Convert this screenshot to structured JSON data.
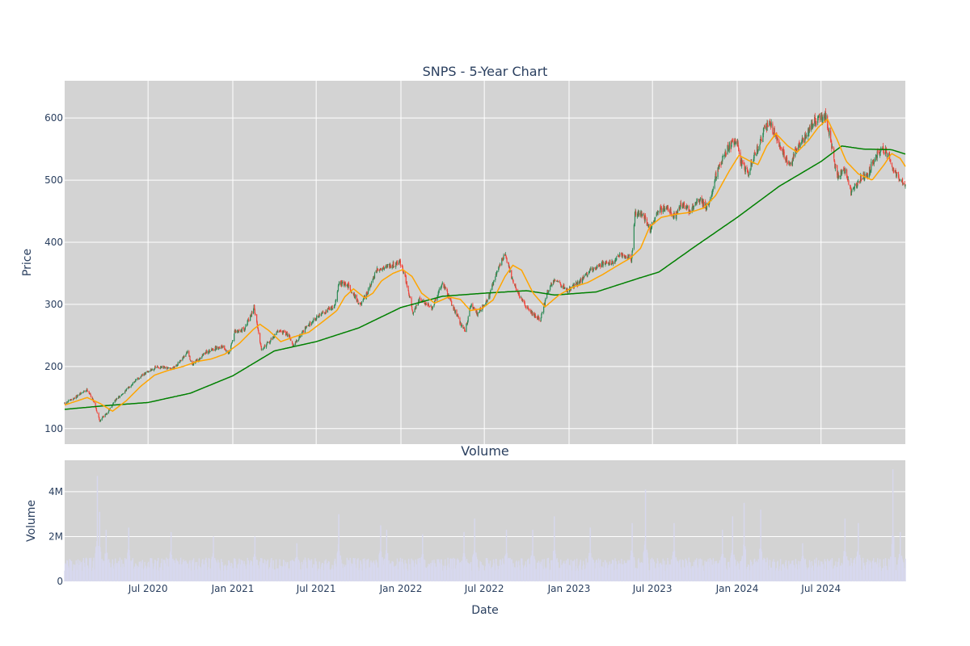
{
  "chart_data": [
    {
      "type": "candlestick",
      "title": "SNPS - 5-Year Chart",
      "ylabel": "Price",
      "xlabel": "",
      "ylim": [
        75,
        660
      ],
      "xlim": [
        "2020-01-02",
        "2024-12-31"
      ],
      "y_ticks": [
        100,
        200,
        300,
        400,
        500,
        600
      ],
      "grid": true,
      "background": "#d3d3d3",
      "colors": {
        "up": "#2e8b57",
        "down": "#f0433a",
        "ma_short": "#ffa500",
        "ma_long": "#008000"
      },
      "price_keypoints": [
        [
          "2020-01-02",
          140
        ],
        [
          "2020-01-20",
          148
        ],
        [
          "2020-02-20",
          163
        ],
        [
          "2020-03-06",
          143
        ],
        [
          "2020-03-18",
          112
        ],
        [
          "2020-03-23",
          118
        ],
        [
          "2020-04-01",
          123
        ],
        [
          "2020-04-20",
          145
        ],
        [
          "2020-05-10",
          158
        ],
        [
          "2020-06-01",
          176
        ],
        [
          "2020-07-01",
          192
        ],
        [
          "2020-07-20",
          199
        ],
        [
          "2020-08-20",
          196
        ],
        [
          "2020-09-10",
          208
        ],
        [
          "2020-09-25",
          224
        ],
        [
          "2020-10-05",
          202
        ],
        [
          "2020-11-01",
          222
        ],
        [
          "2020-11-20",
          228
        ],
        [
          "2020-12-10",
          233
        ],
        [
          "2020-12-23",
          220
        ],
        [
          "2021-01-05",
          255
        ],
        [
          "2021-01-26",
          261
        ],
        [
          "2021-02-08",
          280
        ],
        [
          "2021-02-16",
          296
        ],
        [
          "2021-03-04",
          229
        ],
        [
          "2021-03-20",
          238
        ],
        [
          "2021-04-10",
          258
        ],
        [
          "2021-05-03",
          251
        ],
        [
          "2021-05-12",
          232
        ],
        [
          "2021-06-01",
          256
        ],
        [
          "2021-06-25",
          275
        ],
        [
          "2021-07-20",
          289
        ],
        [
          "2021-08-10",
          297
        ],
        [
          "2021-08-20",
          335
        ],
        [
          "2021-09-10",
          329
        ],
        [
          "2021-10-05",
          298
        ],
        [
          "2021-10-20",
          318
        ],
        [
          "2021-11-10",
          355
        ],
        [
          "2021-12-01",
          362
        ],
        [
          "2021-12-20",
          365
        ],
        [
          "2021-12-29",
          370
        ],
        [
          "2022-01-10",
          345
        ],
        [
          "2022-01-27",
          287
        ],
        [
          "2022-02-10",
          307
        ],
        [
          "2022-03-01",
          300
        ],
        [
          "2022-03-10",
          292
        ],
        [
          "2022-04-01",
          335
        ],
        [
          "2022-04-15",
          312
        ],
        [
          "2022-05-10",
          270
        ],
        [
          "2022-05-20",
          258
        ],
        [
          "2022-06-03",
          300
        ],
        [
          "2022-06-16",
          285
        ],
        [
          "2022-07-10",
          310
        ],
        [
          "2022-08-01",
          360
        ],
        [
          "2022-08-15",
          382
        ],
        [
          "2022-09-01",
          337
        ],
        [
          "2022-09-20",
          306
        ],
        [
          "2022-10-14",
          285
        ],
        [
          "2022-10-31",
          275
        ],
        [
          "2022-11-15",
          320
        ],
        [
          "2022-12-01",
          342
        ],
        [
          "2022-12-28",
          322
        ],
        [
          "2023-01-20",
          334
        ],
        [
          "2023-02-10",
          350
        ],
        [
          "2023-02-28",
          360
        ],
        [
          "2023-03-20",
          368
        ],
        [
          "2023-04-10",
          368
        ],
        [
          "2023-04-20",
          378
        ],
        [
          "2023-05-05",
          378
        ],
        [
          "2023-05-17",
          372
        ],
        [
          "2023-05-24",
          445
        ],
        [
          "2023-06-10",
          445
        ],
        [
          "2023-06-26",
          420
        ],
        [
          "2023-07-15",
          453
        ],
        [
          "2023-08-01",
          455
        ],
        [
          "2023-08-20",
          440
        ],
        [
          "2023-09-01",
          462
        ],
        [
          "2023-09-20",
          450
        ],
        [
          "2023-10-10",
          468
        ],
        [
          "2023-10-30",
          455
        ],
        [
          "2023-11-15",
          508
        ],
        [
          "2023-12-01",
          536
        ],
        [
          "2023-12-15",
          555
        ],
        [
          "2023-12-31",
          565
        ],
        [
          "2024-01-08",
          530
        ],
        [
          "2024-01-25",
          510
        ],
        [
          "2024-02-05",
          535
        ],
        [
          "2024-02-20",
          560
        ],
        [
          "2024-02-28",
          583
        ],
        [
          "2024-03-12",
          590
        ],
        [
          "2024-03-25",
          572
        ],
        [
          "2024-04-10",
          545
        ],
        [
          "2024-04-25",
          520
        ],
        [
          "2024-05-10",
          555
        ],
        [
          "2024-05-25",
          565
        ],
        [
          "2024-06-10",
          590
        ],
        [
          "2024-06-25",
          600
        ],
        [
          "2024-07-10",
          605
        ],
        [
          "2024-07-24",
          555
        ],
        [
          "2024-08-05",
          505
        ],
        [
          "2024-08-20",
          520
        ],
        [
          "2024-09-05",
          478
        ],
        [
          "2024-09-25",
          505
        ],
        [
          "2024-10-10",
          510
        ],
        [
          "2024-10-25",
          535
        ],
        [
          "2024-11-10",
          550
        ],
        [
          "2024-11-25",
          540
        ],
        [
          "2024-12-05",
          515
        ],
        [
          "2024-12-20",
          500
        ],
        [
          "2024-12-31",
          488
        ]
      ],
      "ma_short_keypoints": [
        [
          "2020-01-02",
          138
        ],
        [
          "2020-02-20",
          150
        ],
        [
          "2020-03-20",
          140
        ],
        [
          "2020-04-15",
          128
        ],
        [
          "2020-05-15",
          145
        ],
        [
          "2020-06-15",
          168
        ],
        [
          "2020-07-15",
          186
        ],
        [
          "2020-08-15",
          194
        ],
        [
          "2020-09-15",
          200
        ],
        [
          "2020-10-15",
          208
        ],
        [
          "2020-11-15",
          212
        ],
        [
          "2020-12-15",
          220
        ],
        [
          "2021-01-15",
          237
        ],
        [
          "2021-02-15",
          260
        ],
        [
          "2021-03-01",
          268
        ],
        [
          "2021-03-20",
          258
        ],
        [
          "2021-04-15",
          240
        ],
        [
          "2021-05-15",
          248
        ],
        [
          "2021-06-15",
          255
        ],
        [
          "2021-07-15",
          272
        ],
        [
          "2021-08-15",
          290
        ],
        [
          "2021-09-01",
          312
        ],
        [
          "2021-09-20",
          325
        ],
        [
          "2021-10-15",
          310
        ],
        [
          "2021-11-01",
          318
        ],
        [
          "2021-11-20",
          338
        ],
        [
          "2021-12-15",
          350
        ],
        [
          "2022-01-05",
          356
        ],
        [
          "2022-01-25",
          345
        ],
        [
          "2022-02-15",
          318
        ],
        [
          "2022-03-15",
          302
        ],
        [
          "2022-04-15",
          312
        ],
        [
          "2022-05-10",
          308
        ],
        [
          "2022-06-01",
          290
        ],
        [
          "2022-06-25",
          293
        ],
        [
          "2022-07-20",
          307
        ],
        [
          "2022-08-15",
          345
        ],
        [
          "2022-09-01",
          363
        ],
        [
          "2022-09-20",
          355
        ],
        [
          "2022-10-15",
          318
        ],
        [
          "2022-11-10",
          296
        ],
        [
          "2022-12-10",
          315
        ],
        [
          "2023-01-10",
          328
        ],
        [
          "2023-02-10",
          335
        ],
        [
          "2023-03-15",
          348
        ],
        [
          "2023-04-15",
          362
        ],
        [
          "2023-05-15",
          375
        ],
        [
          "2023-06-05",
          390
        ],
        [
          "2023-06-25",
          425
        ],
        [
          "2023-07-20",
          440
        ],
        [
          "2023-08-20",
          445
        ],
        [
          "2023-09-20",
          448
        ],
        [
          "2023-10-20",
          455
        ],
        [
          "2023-11-15",
          475
        ],
        [
          "2023-12-15",
          515
        ],
        [
          "2024-01-05",
          540
        ],
        [
          "2024-01-25",
          532
        ],
        [
          "2024-02-15",
          525
        ],
        [
          "2024-03-05",
          555
        ],
        [
          "2024-03-25",
          575
        ],
        [
          "2024-04-20",
          555
        ],
        [
          "2024-05-10",
          545
        ],
        [
          "2024-06-05",
          565
        ],
        [
          "2024-06-25",
          585
        ],
        [
          "2024-07-15",
          598
        ],
        [
          "2024-08-05",
          565
        ],
        [
          "2024-08-25",
          530
        ],
        [
          "2024-09-20",
          510
        ],
        [
          "2024-10-20",
          500
        ],
        [
          "2024-11-15",
          525
        ],
        [
          "2024-12-01",
          543
        ],
        [
          "2024-12-20",
          535
        ],
        [
          "2024-12-31",
          522
        ]
      ],
      "ma_long_keypoints": [
        [
          "2020-01-02",
          131
        ],
        [
          "2020-04-01",
          137
        ],
        [
          "2020-07-01",
          142
        ],
        [
          "2020-10-01",
          157
        ],
        [
          "2021-01-01",
          185
        ],
        [
          "2021-04-01",
          225
        ],
        [
          "2021-07-01",
          240
        ],
        [
          "2021-10-01",
          262
        ],
        [
          "2022-01-01",
          295
        ],
        [
          "2022-04-01",
          313
        ],
        [
          "2022-07-01",
          318
        ],
        [
          "2022-10-01",
          322
        ],
        [
          "2022-12-01",
          315
        ],
        [
          "2023-03-01",
          320
        ],
        [
          "2023-06-01",
          342
        ],
        [
          "2023-07-15",
          352
        ],
        [
          "2023-10-01",
          393
        ],
        [
          "2024-01-01",
          440
        ],
        [
          "2024-04-01",
          490
        ],
        [
          "2024-07-01",
          530
        ],
        [
          "2024-08-15",
          555
        ],
        [
          "2024-10-01",
          550
        ],
        [
          "2024-12-01",
          549
        ],
        [
          "2024-12-31",
          542
        ]
      ]
    },
    {
      "type": "bar",
      "title": "Volume",
      "xlabel": "Date",
      "ylabel": "Volume",
      "ylim": [
        0,
        5400000
      ],
      "y_ticks": [
        0,
        2000000,
        4000000
      ],
      "y_tick_labels": [
        "0",
        "2M",
        "4M"
      ],
      "x_ticks": [
        "2020-07-01",
        "2021-01-01",
        "2021-07-01",
        "2022-01-01",
        "2022-07-01",
        "2023-01-01",
        "2023-07-01",
        "2024-01-01",
        "2024-07-01"
      ],
      "x_tick_labels": [
        "Jul 2020",
        "Jan 2021",
        "Jul 2021",
        "Jan 2022",
        "Jul 2022",
        "Jan 2023",
        "Jul 2023",
        "Jan 2024",
        "Jul 2024"
      ],
      "grid": true,
      "background": "#d3d3d3",
      "bar_color": "#d7d8ee",
      "baseline": 850000,
      "volume_spikes": [
        [
          "2020-03-13",
          4700000
        ],
        [
          "2020-03-18",
          3100000
        ],
        [
          "2020-04-01",
          2300000
        ],
        [
          "2020-05-20",
          2400000
        ],
        [
          "2020-08-20",
          2200000
        ],
        [
          "2020-11-20",
          2000000
        ],
        [
          "2021-02-18",
          2000000
        ],
        [
          "2021-05-20",
          1700000
        ],
        [
          "2021-08-19",
          3000000
        ],
        [
          "2021-11-18",
          2500000
        ],
        [
          "2021-12-01",
          2300000
        ],
        [
          "2022-02-17",
          2100000
        ],
        [
          "2022-05-18",
          2200000
        ],
        [
          "2022-06-10",
          2800000
        ],
        [
          "2022-08-18",
          2300000
        ],
        [
          "2022-10-14",
          2300000
        ],
        [
          "2022-11-30",
          2900000
        ],
        [
          "2023-02-16",
          2400000
        ],
        [
          "2023-05-18",
          2600000
        ],
        [
          "2023-06-16",
          4100000
        ],
        [
          "2023-08-17",
          2600000
        ],
        [
          "2023-11-30",
          2300000
        ],
        [
          "2023-12-22",
          2900000
        ],
        [
          "2024-01-16",
          3500000
        ],
        [
          "2024-02-21",
          3200000
        ],
        [
          "2024-05-22",
          1700000
        ],
        [
          "2024-08-22",
          2800000
        ],
        [
          "2024-09-20",
          2600000
        ],
        [
          "2024-12-04",
          5000000
        ],
        [
          "2024-12-20",
          2200000
        ]
      ]
    }
  ]
}
